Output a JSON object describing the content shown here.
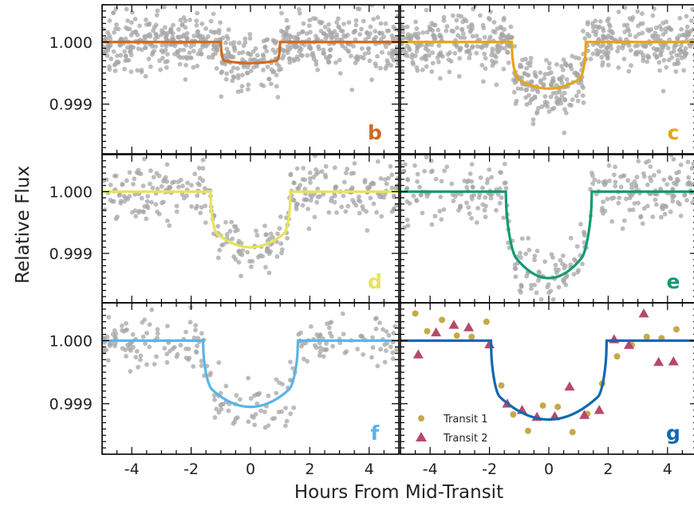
{
  "figure": {
    "xlabel": "Hours From Mid-Transit",
    "ylabel": "Relative Flux"
  },
  "chart_data": {
    "type": "scatter",
    "xlabel": "Hours From Mid-Transit",
    "ylabel": "Relative Flux",
    "xlim": [
      -5,
      5
    ],
    "ylim": [
      0.9982,
      1.0006
    ],
    "xticks": [
      -4,
      -2,
      0,
      2,
      4
    ],
    "xtick_labels": [
      "-4",
      "-2",
      "0",
      "2",
      "4"
    ],
    "yticks": [
      0.999,
      1.0
    ],
    "ytick_labels": [
      "0.999",
      "1.000"
    ],
    "grid": false,
    "panels": [
      {
        "label": "b",
        "color": "#d2691e",
        "depth": 0.00034,
        "half_width": 1.0,
        "ingress": 0.12,
        "curve": 0.15,
        "noise": 0.00022,
        "n_points": 620,
        "x_range": [
          -5,
          5
        ]
      },
      {
        "label": "c",
        "color": "#e6a613",
        "depth": 0.00075,
        "half_width": 1.25,
        "ingress": 0.22,
        "curve": 0.3,
        "noise": 0.00025,
        "n_points": 620,
        "x_range": [
          -5,
          5
        ]
      },
      {
        "label": "d",
        "color": "#e8e356",
        "depth": 0.0009,
        "half_width": 1.35,
        "ingress": 0.22,
        "curve": 0.35,
        "noise": 0.00022,
        "n_points": 330,
        "x_range": [
          -5,
          5
        ]
      },
      {
        "label": "e",
        "color": "#109a73",
        "depth": 0.0014,
        "half_width": 1.45,
        "ingress": 0.35,
        "curve": 0.4,
        "noise": 0.00025,
        "n_points": 330,
        "x_range": [
          -5,
          5
        ]
      },
      {
        "label": "f",
        "color": "#5ab4e8",
        "depth": 0.00105,
        "half_width": 1.6,
        "ingress": 0.3,
        "curve": 0.4,
        "noise": 0.00022,
        "n_points": 230,
        "x_range": [
          -5,
          5
        ]
      },
      {
        "label": "g",
        "color": "#1168b0",
        "depth": 0.00125,
        "half_width": 1.95,
        "ingress": 0.3,
        "curve": 0.4,
        "noise": 0.0,
        "n_points": 0,
        "x_range": [
          -5,
          5
        ]
      }
    ],
    "series": [
      {
        "name": "Transit 1",
        "panel": "g",
        "color": "#c6a94b",
        "marker": "circle",
        "x": [
          -4.5,
          -4.1,
          -3.6,
          -3.1,
          -2.6,
          -2.1,
          -1.6,
          -1.2,
          -0.7,
          -0.2,
          0.3,
          0.8,
          1.3,
          1.8,
          2.3,
          2.8,
          3.3,
          3.8,
          4.3
        ],
        "y": [
          1.00043,
          1.00015,
          1.00033,
          1.00008,
          1.00006,
          1.0003,
          0.99929,
          0.99883,
          0.99857,
          0.99897,
          0.99895,
          0.99855,
          0.99884,
          0.99932,
          0.99975,
          0.99993,
          1.00006,
          1.00004,
          1.00018
        ]
      },
      {
        "name": "Transit 2",
        "panel": "g",
        "color": "#b54a6b",
        "marker": "triangle",
        "x": [
          -4.4,
          -3.8,
          -3.2,
          -2.7,
          -2.0,
          -1.4,
          -0.9,
          -0.4,
          0.2,
          0.7,
          1.2,
          1.7,
          2.2,
          2.7,
          3.2,
          3.7,
          4.2
        ],
        "y": [
          0.99978,
          1.00013,
          1.00025,
          1.00021,
          0.99994,
          0.999,
          0.9989,
          0.99879,
          0.9988,
          0.99927,
          0.99882,
          0.9989,
          1.00002,
          0.99993,
          1.00043,
          0.99966,
          0.99967
        ]
      }
    ],
    "legend": {
      "entries": [
        "Transit 1",
        "Transit 2"
      ],
      "placement": "lower-left"
    }
  }
}
